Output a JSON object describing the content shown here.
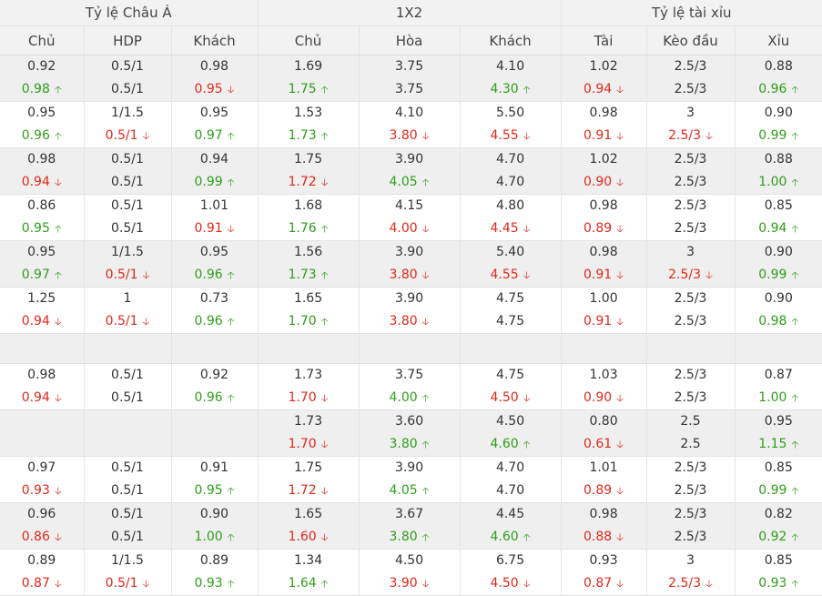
{
  "header": {
    "groups": [
      "Tỷ lệ Châu Á",
      "1X2",
      "Tỷ lệ tài xỉu"
    ],
    "columns": [
      "Chủ",
      "HDP",
      "Khách",
      "Chủ",
      "Hòa",
      "Khách",
      "Tài",
      "Kèo đầu",
      "Xỉu"
    ]
  },
  "arrows": {
    "up": "🡡",
    "down": "🡣"
  },
  "colors": {
    "up": "#2e9e19",
    "down": "#e0281a",
    "header_bg": "#f2f2f2",
    "row_shade": "#efefef"
  },
  "rows": [
    {
      "shaded": true,
      "cells": [
        {
          "open": "0.92",
          "live": "0.98",
          "dir": "up"
        },
        {
          "open": "0.5/1",
          "live": "0.5/1",
          "dir": "same"
        },
        {
          "open": "0.98",
          "live": "0.95",
          "dir": "down"
        },
        {
          "open": "1.69",
          "live": "1.75",
          "dir": "up"
        },
        {
          "open": "3.75",
          "live": "3.75",
          "dir": "same"
        },
        {
          "open": "4.10",
          "live": "4.30",
          "dir": "up"
        },
        {
          "open": "1.02",
          "live": "0.94",
          "dir": "down"
        },
        {
          "open": "2.5/3",
          "live": "2.5/3",
          "dir": "same"
        },
        {
          "open": "0.88",
          "live": "0.96",
          "dir": "up"
        }
      ]
    },
    {
      "shaded": false,
      "cells": [
        {
          "open": "0.95",
          "live": "0.96",
          "dir": "up"
        },
        {
          "open": "1/1.5",
          "live": "0.5/1",
          "dir": "down"
        },
        {
          "open": "0.95",
          "live": "0.97",
          "dir": "up"
        },
        {
          "open": "1.53",
          "live": "1.73",
          "dir": "up"
        },
        {
          "open": "4.10",
          "live": "3.80",
          "dir": "down"
        },
        {
          "open": "5.50",
          "live": "4.55",
          "dir": "down"
        },
        {
          "open": "0.98",
          "live": "0.91",
          "dir": "down"
        },
        {
          "open": "3",
          "live": "2.5/3",
          "dir": "down"
        },
        {
          "open": "0.90",
          "live": "0.99",
          "dir": "up"
        }
      ]
    },
    {
      "shaded": true,
      "cells": [
        {
          "open": "0.98",
          "live": "0.94",
          "dir": "down"
        },
        {
          "open": "0.5/1",
          "live": "0.5/1",
          "dir": "same"
        },
        {
          "open": "0.94",
          "live": "0.99",
          "dir": "up"
        },
        {
          "open": "1.75",
          "live": "1.72",
          "dir": "down"
        },
        {
          "open": "3.90",
          "live": "4.05",
          "dir": "up"
        },
        {
          "open": "4.70",
          "live": "4.70",
          "dir": "same"
        },
        {
          "open": "1.02",
          "live": "0.90",
          "dir": "down"
        },
        {
          "open": "2.5/3",
          "live": "2.5/3",
          "dir": "same"
        },
        {
          "open": "0.88",
          "live": "1.00",
          "dir": "up"
        }
      ]
    },
    {
      "shaded": false,
      "cells": [
        {
          "open": "0.86",
          "live": "0.95",
          "dir": "up"
        },
        {
          "open": "0.5/1",
          "live": "0.5/1",
          "dir": "same"
        },
        {
          "open": "1.01",
          "live": "0.91",
          "dir": "down"
        },
        {
          "open": "1.68",
          "live": "1.76",
          "dir": "up"
        },
        {
          "open": "4.15",
          "live": "4.00",
          "dir": "down"
        },
        {
          "open": "4.80",
          "live": "4.45",
          "dir": "down"
        },
        {
          "open": "0.98",
          "live": "0.89",
          "dir": "down"
        },
        {
          "open": "2.5/3",
          "live": "2.5/3",
          "dir": "same"
        },
        {
          "open": "0.85",
          "live": "0.94",
          "dir": "up"
        }
      ]
    },
    {
      "shaded": true,
      "cells": [
        {
          "open": "0.95",
          "live": "0.97",
          "dir": "up"
        },
        {
          "open": "1/1.5",
          "live": "0.5/1",
          "dir": "down"
        },
        {
          "open": "0.95",
          "live": "0.96",
          "dir": "up"
        },
        {
          "open": "1.56",
          "live": "1.73",
          "dir": "up"
        },
        {
          "open": "3.90",
          "live": "3.80",
          "dir": "down"
        },
        {
          "open": "5.40",
          "live": "4.55",
          "dir": "down"
        },
        {
          "open": "0.98",
          "live": "0.91",
          "dir": "down"
        },
        {
          "open": "3",
          "live": "2.5/3",
          "dir": "down"
        },
        {
          "open": "0.90",
          "live": "0.99",
          "dir": "up"
        }
      ]
    },
    {
      "shaded": false,
      "cells": [
        {
          "open": "1.25",
          "live": "0.94",
          "dir": "down"
        },
        {
          "open": "1",
          "live": "0.5/1",
          "dir": "down"
        },
        {
          "open": "0.73",
          "live": "0.96",
          "dir": "up"
        },
        {
          "open": "1.65",
          "live": "1.70",
          "dir": "up"
        },
        {
          "open": "3.90",
          "live": "3.80",
          "dir": "down"
        },
        {
          "open": "4.75",
          "live": "4.75",
          "dir": "same"
        },
        {
          "open": "1.00",
          "live": "0.91",
          "dir": "down"
        },
        {
          "open": "2.5/3",
          "live": "2.5/3",
          "dir": "same"
        },
        {
          "open": "0.90",
          "live": "0.98",
          "dir": "up"
        }
      ]
    },
    {
      "empty": true
    },
    {
      "shaded": false,
      "cells": [
        {
          "open": "0.98",
          "live": "0.94",
          "dir": "down"
        },
        {
          "open": "0.5/1",
          "live": "0.5/1",
          "dir": "same"
        },
        {
          "open": "0.92",
          "live": "0.96",
          "dir": "up"
        },
        {
          "open": "1.73",
          "live": "1.70",
          "dir": "down"
        },
        {
          "open": "3.75",
          "live": "4.00",
          "dir": "up"
        },
        {
          "open": "4.75",
          "live": "4.50",
          "dir": "down"
        },
        {
          "open": "1.03",
          "live": "0.90",
          "dir": "down"
        },
        {
          "open": "2.5/3",
          "live": "2.5/3",
          "dir": "same"
        },
        {
          "open": "0.87",
          "live": "1.00",
          "dir": "up"
        }
      ]
    },
    {
      "shaded": true,
      "cells": [
        {
          "open": "",
          "live": "",
          "dir": "same"
        },
        {
          "open": "",
          "live": "",
          "dir": "same"
        },
        {
          "open": "",
          "live": "",
          "dir": "same"
        },
        {
          "open": "1.73",
          "live": "1.70",
          "dir": "down"
        },
        {
          "open": "3.60",
          "live": "3.80",
          "dir": "up"
        },
        {
          "open": "4.50",
          "live": "4.60",
          "dir": "up"
        },
        {
          "open": "0.80",
          "live": "0.61",
          "dir": "down"
        },
        {
          "open": "2.5",
          "live": "2.5",
          "dir": "same"
        },
        {
          "open": "0.95",
          "live": "1.15",
          "dir": "up"
        }
      ]
    },
    {
      "shaded": false,
      "cells": [
        {
          "open": "0.97",
          "live": "0.93",
          "dir": "down"
        },
        {
          "open": "0.5/1",
          "live": "0.5/1",
          "dir": "same"
        },
        {
          "open": "0.91",
          "live": "0.95",
          "dir": "up"
        },
        {
          "open": "1.75",
          "live": "1.72",
          "dir": "down"
        },
        {
          "open": "3.90",
          "live": "4.05",
          "dir": "up"
        },
        {
          "open": "4.70",
          "live": "4.70",
          "dir": "same"
        },
        {
          "open": "1.01",
          "live": "0.89",
          "dir": "down"
        },
        {
          "open": "2.5/3",
          "live": "2.5/3",
          "dir": "same"
        },
        {
          "open": "0.85",
          "live": "0.99",
          "dir": "up"
        }
      ]
    },
    {
      "shaded": true,
      "cells": [
        {
          "open": "0.96",
          "live": "0.86",
          "dir": "down"
        },
        {
          "open": "0.5/1",
          "live": "0.5/1",
          "dir": "same"
        },
        {
          "open": "0.90",
          "live": "1.00",
          "dir": "up"
        },
        {
          "open": "1.65",
          "live": "1.60",
          "dir": "down"
        },
        {
          "open": "3.67",
          "live": "3.80",
          "dir": "up"
        },
        {
          "open": "4.45",
          "live": "4.60",
          "dir": "up"
        },
        {
          "open": "0.98",
          "live": "0.88",
          "dir": "down"
        },
        {
          "open": "2.5/3",
          "live": "2.5/3",
          "dir": "same"
        },
        {
          "open": "0.82",
          "live": "0.92",
          "dir": "up"
        }
      ]
    },
    {
      "shaded": false,
      "cells": [
        {
          "open": "0.89",
          "live": "0.87",
          "dir": "down"
        },
        {
          "open": "1/1.5",
          "live": "0.5/1",
          "dir": "down"
        },
        {
          "open": "0.89",
          "live": "0.93",
          "dir": "up"
        },
        {
          "open": "1.34",
          "live": "1.64",
          "dir": "up"
        },
        {
          "open": "4.50",
          "live": "3.90",
          "dir": "down"
        },
        {
          "open": "6.75",
          "live": "4.50",
          "dir": "down"
        },
        {
          "open": "0.93",
          "live": "0.87",
          "dir": "down"
        },
        {
          "open": "3",
          "live": "2.5/3",
          "dir": "down"
        },
        {
          "open": "0.85",
          "live": "0.93",
          "dir": "up"
        }
      ]
    }
  ]
}
